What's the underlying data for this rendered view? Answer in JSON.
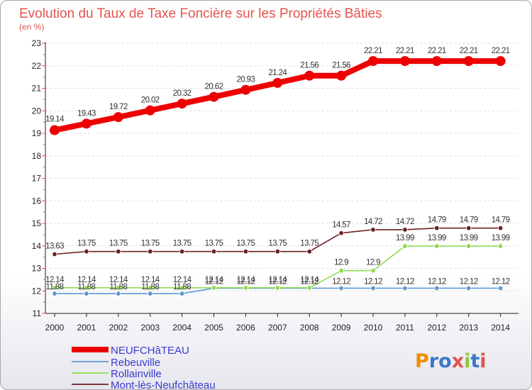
{
  "chart_data": {
    "type": "line",
    "title": "Evolution du Taux de Taxe Foncière sur les Propriétés Bâties",
    "ylabel": "(en %)",
    "xlabel": "",
    "ylim": [
      11,
      23
    ],
    "yticks": [
      11,
      12,
      13,
      14,
      15,
      16,
      17,
      18,
      19,
      20,
      21,
      22,
      23
    ],
    "categories": [
      "2000",
      "2001",
      "2002",
      "2003",
      "2004",
      "2005",
      "2006",
      "2007",
      "2008",
      "2009",
      "2010",
      "2011",
      "2012",
      "2013",
      "2014"
    ],
    "legend_position": "bottom-left",
    "series": [
      {
        "name": "NEUFCHâTEAU",
        "color": "#ee0000",
        "values": [
          19.14,
          19.43,
          19.72,
          20.02,
          20.32,
          20.62,
          20.93,
          21.24,
          21.56,
          21.56,
          22.21,
          22.21,
          22.21,
          22.21,
          22.21
        ],
        "labels": [
          "19.14",
          "19.43",
          "19.72",
          "20.02",
          "20.32",
          "20.62",
          "20.93",
          "21.24",
          "21.56",
          "21.56",
          "22.21",
          "22.21",
          "22.21",
          "22.21",
          "22.21"
        ]
      },
      {
        "name": "Rebeuville",
        "color": "#5c9ad6",
        "values": [
          11.88,
          11.88,
          11.88,
          11.88,
          11.88,
          12.12,
          12.12,
          12.12,
          12.12,
          12.12,
          12.12,
          12.12,
          12.12,
          12.12,
          12.12
        ],
        "labels": [
          "11.88",
          "11.88",
          "11.88",
          "11.88",
          "11.88",
          "12.12",
          "12.12",
          "12.12",
          "12.12",
          "12.12",
          "12.12",
          "12.12",
          "12.12",
          "12.12",
          "12.12"
        ]
      },
      {
        "name": "Rollainville",
        "color": "#8fdc50",
        "values": [
          12.14,
          12.14,
          12.14,
          12.14,
          12.14,
          12.14,
          12.14,
          12.14,
          12.14,
          12.9,
          12.9,
          13.99,
          13.99,
          13.99,
          13.99
        ],
        "labels": [
          "12.14",
          "12.14",
          "12.14",
          "12.14",
          "12.14",
          "12.14",
          "12.14",
          "12.14",
          "12.14",
          "12.9",
          "12.9",
          "13.99",
          "13.99",
          "13.99",
          "13.99"
        ]
      },
      {
        "name": "Mont-lès-Neufchâteau",
        "color": "#6e1f22",
        "values": [
          13.63,
          13.75,
          13.75,
          13.75,
          13.75,
          13.75,
          13.75,
          13.75,
          13.75,
          14.57,
          14.72,
          14.72,
          14.79,
          14.79,
          14.79
        ],
        "labels": [
          "13.63",
          "13.75",
          "13.75",
          "13.75",
          "13.75",
          "13.75",
          "13.75",
          "13.75",
          "13.75",
          "14.57",
          "14.72",
          "14.72",
          "14.79",
          "14.79",
          "14.79"
        ]
      }
    ]
  },
  "branding": {
    "logo_text": "Proxiti",
    "logo_colors": [
      "#f28c00",
      "#3a78c9",
      "#3a78c9",
      "#e0554e",
      "#8cc63f",
      "#3a78c9",
      "#e0554e"
    ]
  }
}
